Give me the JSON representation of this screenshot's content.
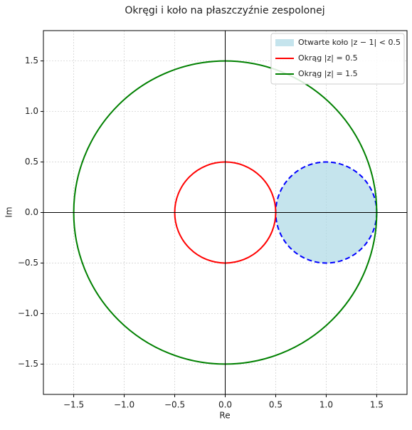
{
  "chart_data": {
    "type": "circle",
    "title": "Okręgi i koło na płaszczyźnie zespolonej",
    "xlabel": "Re",
    "ylabel": "Im",
    "xlim": [
      -1.8,
      1.8
    ],
    "ylim": [
      -1.8,
      1.8
    ],
    "xticks": [
      {
        "value": -1.5,
        "label": "−1.5"
      },
      {
        "value": -1.0,
        "label": "−1.0"
      },
      {
        "value": -0.5,
        "label": "−0.5"
      },
      {
        "value": 0,
        "label": "0.0"
      },
      0.5,
      {
        "value": 1.0,
        "label": "1.0"
      },
      1.5
    ],
    "yticks": [
      {
        "value": -1.5,
        "label": "−1.5"
      },
      {
        "value": -1.0,
        "label": "−1.0"
      },
      {
        "value": -0.5,
        "label": "−0.5"
      },
      {
        "value": 0,
        "label": "0.0"
      },
      0.5,
      {
        "value": 1.0,
        "label": "1.0"
      },
      1.5
    ],
    "grid": true,
    "axhline": 0,
    "axvline": 0,
    "legend": "upper right",
    "series": [
      {
        "name": "Otwarte koło |z − 1| < 0.5",
        "center": [
          1,
          0
        ],
        "radius": 0.5,
        "color": "#0000ff",
        "fill": "#add8e6",
        "alpha": 0.7,
        "linestyle": "dashed"
      },
      {
        "name": "Okrąg |z| = 0.5",
        "center": [
          0,
          0
        ],
        "radius": 0.5,
        "color": "#ff0000",
        "linestyle": "solid"
      },
      {
        "name": "Okrąg |z| = 1.5",
        "center": [
          0,
          0
        ],
        "radius": 1.5,
        "color": "#008000",
        "linestyle": "solid"
      }
    ]
  }
}
